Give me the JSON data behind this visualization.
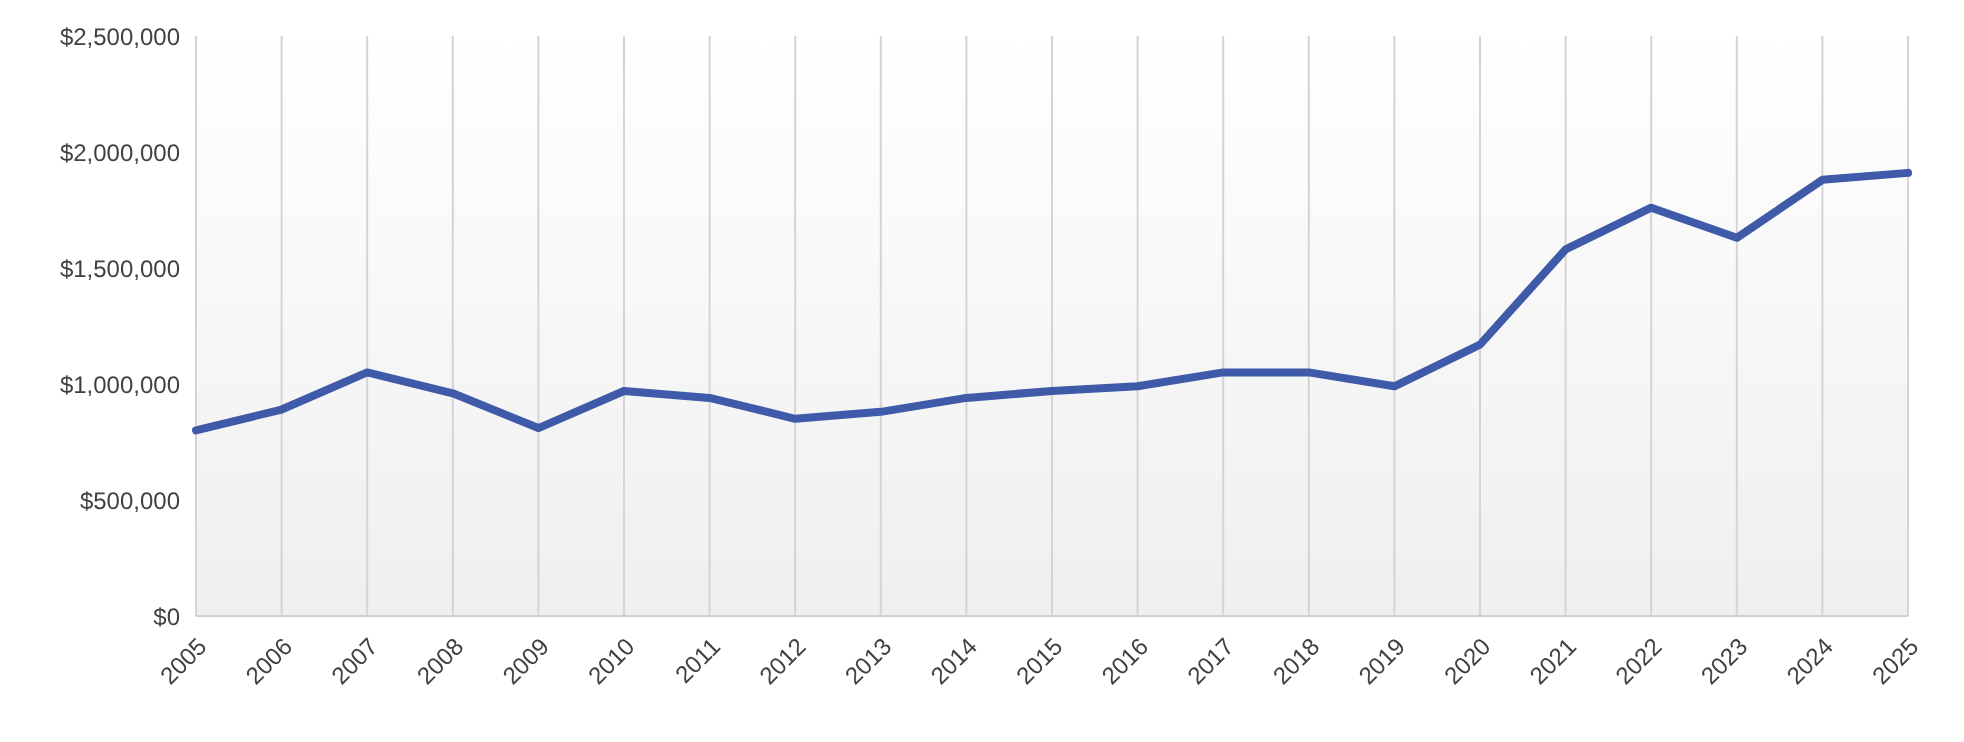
{
  "chart_data": {
    "type": "line",
    "categories": [
      "2005",
      "2006",
      "2007",
      "2008",
      "2009",
      "2010",
      "2011",
      "2012",
      "2013",
      "2014",
      "2015",
      "2016",
      "2017",
      "2018",
      "2019",
      "2020",
      "2021",
      "2022",
      "2023",
      "2024",
      "2025"
    ],
    "series": [
      {
        "color": "#3f5aa8",
        "values": [
          800000,
          890000,
          1050000,
          960000,
          810000,
          970000,
          940000,
          850000,
          880000,
          940000,
          970000,
          990000,
          1050000,
          1050000,
          990000,
          1170000,
          1580000,
          1760000,
          1630000,
          1880000,
          1910000
        ]
      }
    ],
    "ylim": [
      0,
      2500000
    ],
    "yticks": [
      {
        "value": 0,
        "label": "$0"
      },
      {
        "value": 500000,
        "label": "$500,000"
      },
      {
        "value": 1000000,
        "label": "$1,000,000"
      },
      {
        "value": 1500000,
        "label": "$1,500,000"
      },
      {
        "value": 2000000,
        "label": "$2,000,000"
      },
      {
        "value": 2500000,
        "label": "$2,500,000"
      }
    ],
    "grid": "x",
    "marker": "none",
    "line_style": "solid"
  }
}
